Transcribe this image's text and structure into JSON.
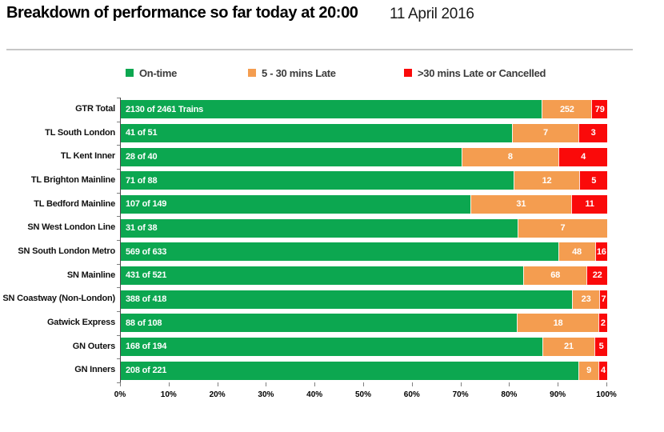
{
  "header": {
    "title": "Breakdown of performance so far today at 20:00",
    "date": "11 April 2016"
  },
  "legend": {
    "items": [
      {
        "label": "On-time",
        "color": "#0CA750"
      },
      {
        "label": "5 - 30 mins Late",
        "color": "#F49D50"
      },
      {
        "label": ">30 mins Late or Cancelled",
        "color": "#FA0A0A"
      }
    ]
  },
  "chart_data": {
    "type": "bar",
    "orientation": "horizontal",
    "stacked": true,
    "title": "Breakdown of performance so far today at 20:00",
    "subtitle": "11 April 2016",
    "xlabel": "",
    "ylabel": "",
    "xlim": [
      0,
      100
    ],
    "x_tick_labels": [
      "0%",
      "10%",
      "20%",
      "30%",
      "40%",
      "50%",
      "60%",
      "70%",
      "80%",
      "90%",
      "100%"
    ],
    "grid": false,
    "legend_position": "top",
    "categories": [
      "GTR Total",
      "TL South London",
      "TL Kent Inner",
      "TL Brighton Mainline",
      "TL Bedford Mainline",
      "SN West London Line",
      "SN South London Metro",
      "SN Mainline",
      "SN Coastway (Non-London)",
      "Gatwick Express",
      "GN Outers",
      "GN Inners"
    ],
    "totals": [
      2461,
      51,
      40,
      88,
      149,
      38,
      633,
      521,
      418,
      108,
      194,
      221
    ],
    "on_time_labels": [
      "2130 of 2461 Trains",
      "41 of 51",
      "28 of 40",
      "71 of 88",
      "107 of 149",
      "31 of 38",
      "569 of 633",
      "431 of 521",
      "388 of 418",
      "88 of 108",
      "168 of 194",
      "208 of 221"
    ],
    "series": [
      {
        "name": "On-time",
        "color": "#0CA750",
        "values": [
          2130,
          41,
          28,
          71,
          107,
          31,
          569,
          431,
          388,
          88,
          168,
          208
        ]
      },
      {
        "name": "5 - 30 mins Late",
        "color": "#F49D50",
        "values": [
          252,
          7,
          8,
          12,
          31,
          7,
          48,
          68,
          23,
          18,
          21,
          9
        ]
      },
      {
        "name": ">30 mins Late or Cancelled",
        "color": "#FA0A0A",
        "values": [
          79,
          3,
          4,
          5,
          11,
          0,
          16,
          22,
          7,
          2,
          5,
          4
        ]
      }
    ]
  }
}
